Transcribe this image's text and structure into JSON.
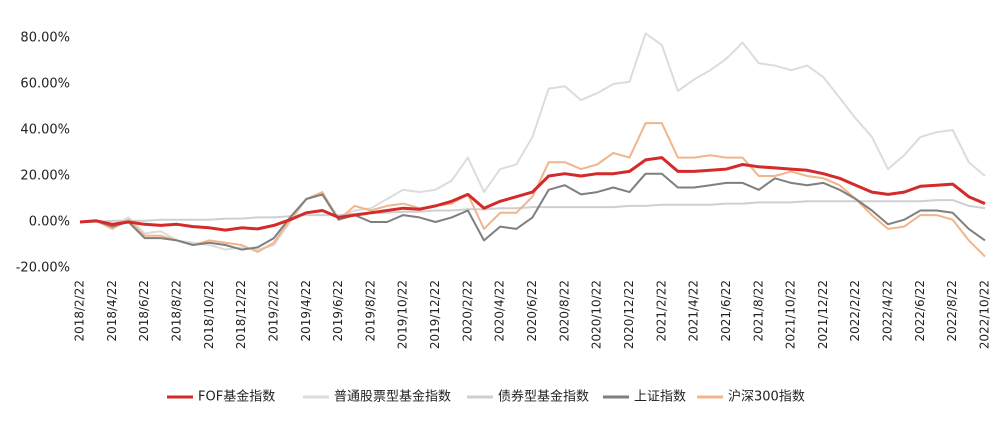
{
  "chart_data": {
    "type": "line",
    "categories": [
      "2018/2/22",
      null,
      "2018/4/22",
      null,
      "2018/6/22",
      null,
      "2018/8/22",
      null,
      "2018/10/22",
      null,
      "2018/12/22",
      null,
      "2019/2/22",
      null,
      "2019/4/22",
      null,
      "2019/6/22",
      null,
      "2019/8/22",
      null,
      "2019/10/22",
      null,
      "2019/12/22",
      null,
      "2020/2/22",
      null,
      "2020/4/22",
      null,
      "2020/6/22",
      null,
      "2020/8/22",
      null,
      "2020/10/22",
      null,
      "2020/12/22",
      null,
      "2021/2/22",
      null,
      "2021/4/22",
      null,
      "2021/6/22",
      null,
      "2021/8/22",
      null,
      "2021/10/22",
      null,
      "2021/12/22",
      null,
      "2022/2/22",
      null,
      "2022/4/22",
      null,
      "2022/6/22",
      null,
      "2022/8/22",
      null,
      "2022/10/22"
    ],
    "series": [
      {
        "name": "FOF基金指数",
        "color": "#d42a2a",
        "width": 3,
        "values": [
          0,
          0.5,
          -1,
          0,
          -1,
          -1.5,
          -1,
          -2,
          -2.5,
          -3.5,
          -2.5,
          -3,
          -1.5,
          1,
          4,
          5,
          2,
          3,
          4,
          5,
          6,
          5.5,
          7,
          9,
          12,
          6,
          9,
          11,
          13,
          20,
          21,
          20,
          21,
          21,
          22,
          27,
          28,
          22,
          22,
          22.5,
          23,
          25,
          24,
          23.5,
          23,
          22.5,
          21,
          19,
          16,
          13,
          12,
          13,
          15.5,
          16,
          16.5,
          11,
          8
        ]
      },
      {
        "name": "普通股票型基金指数",
        "color": "#dcdcdc",
        "width": 2,
        "values": [
          0,
          0.5,
          -2,
          2,
          -5,
          -4,
          -8,
          -9,
          -10,
          -12,
          -11,
          -12,
          -10,
          0,
          10,
          12,
          2,
          5,
          6,
          10,
          14,
          13,
          14,
          18,
          28,
          13,
          23,
          25,
          37,
          58,
          59,
          53,
          56,
          60,
          61,
          82,
          77,
          57,
          62,
          66,
          71,
          78,
          69,
          68,
          66,
          68,
          63,
          54,
          45,
          37,
          23,
          29,
          37,
          39,
          40,
          26,
          20
        ]
      },
      {
        "name": "债券型基金指数",
        "color": "#cfcfcf",
        "width": 2,
        "values": [
          0,
          0,
          0.5,
          0.5,
          0.5,
          1,
          1,
          1,
          1,
          1.5,
          1.5,
          2,
          2,
          2.5,
          3,
          3,
          3,
          3.5,
          4,
          4,
          4.5,
          4.5,
          5,
          5,
          5.5,
          5.5,
          6,
          6,
          6.5,
          6.5,
          6.5,
          6.5,
          6.5,
          6.5,
          7,
          7,
          7.5,
          7.5,
          7.5,
          7.5,
          8,
          8,
          8.5,
          8.5,
          8.5,
          9,
          9,
          9,
          9,
          9,
          9,
          9,
          9,
          9.5,
          9.5,
          7,
          6
        ]
      },
      {
        "name": "上证指数",
        "color": "#7f7f7f",
        "width": 2,
        "values": [
          0,
          0.5,
          -2,
          0,
          -7,
          -7,
          -8,
          -10,
          -9,
          -10,
          -12,
          -11,
          -7,
          2,
          10,
          12,
          1,
          3,
          0,
          0,
          3,
          2,
          0,
          2,
          5,
          -8,
          -2,
          -3,
          2,
          14,
          16,
          12,
          13,
          15,
          13,
          21,
          21,
          15,
          15,
          16,
          17,
          17,
          14,
          19,
          17,
          16,
          17,
          14,
          10,
          5,
          -1,
          1,
          5,
          5,
          4,
          -3,
          -8
        ]
      },
      {
        "name": "沪深300指数",
        "color": "#f0b58a",
        "width": 2,
        "values": [
          0,
          0.5,
          -3,
          1,
          -6,
          -6,
          -8,
          -10,
          -8,
          -9,
          -10,
          -13,
          -9,
          1,
          10,
          13,
          1,
          7,
          5,
          7,
          8,
          6,
          7,
          8,
          12,
          -3,
          4,
          4,
          11,
          26,
          26,
          23,
          25,
          30,
          28,
          43,
          43,
          28,
          28,
          29,
          28,
          28,
          20,
          20,
          22,
          20,
          19,
          16,
          10,
          3,
          -3,
          -2,
          3,
          3,
          1,
          -8,
          -15
        ]
      }
    ],
    "ylim": [
      -20,
      90
    ],
    "yticks": [
      {
        "value": -20,
        "label": "-20.00%"
      },
      {
        "value": 0,
        "label": "0.00%"
      },
      {
        "value": 20,
        "label": "20.00%"
      },
      {
        "value": 40,
        "label": "40.00%"
      },
      {
        "value": 60,
        "label": "60.00%"
      },
      {
        "value": 80,
        "label": "80.00%"
      }
    ],
    "grid": false,
    "legend": "bottom"
  }
}
